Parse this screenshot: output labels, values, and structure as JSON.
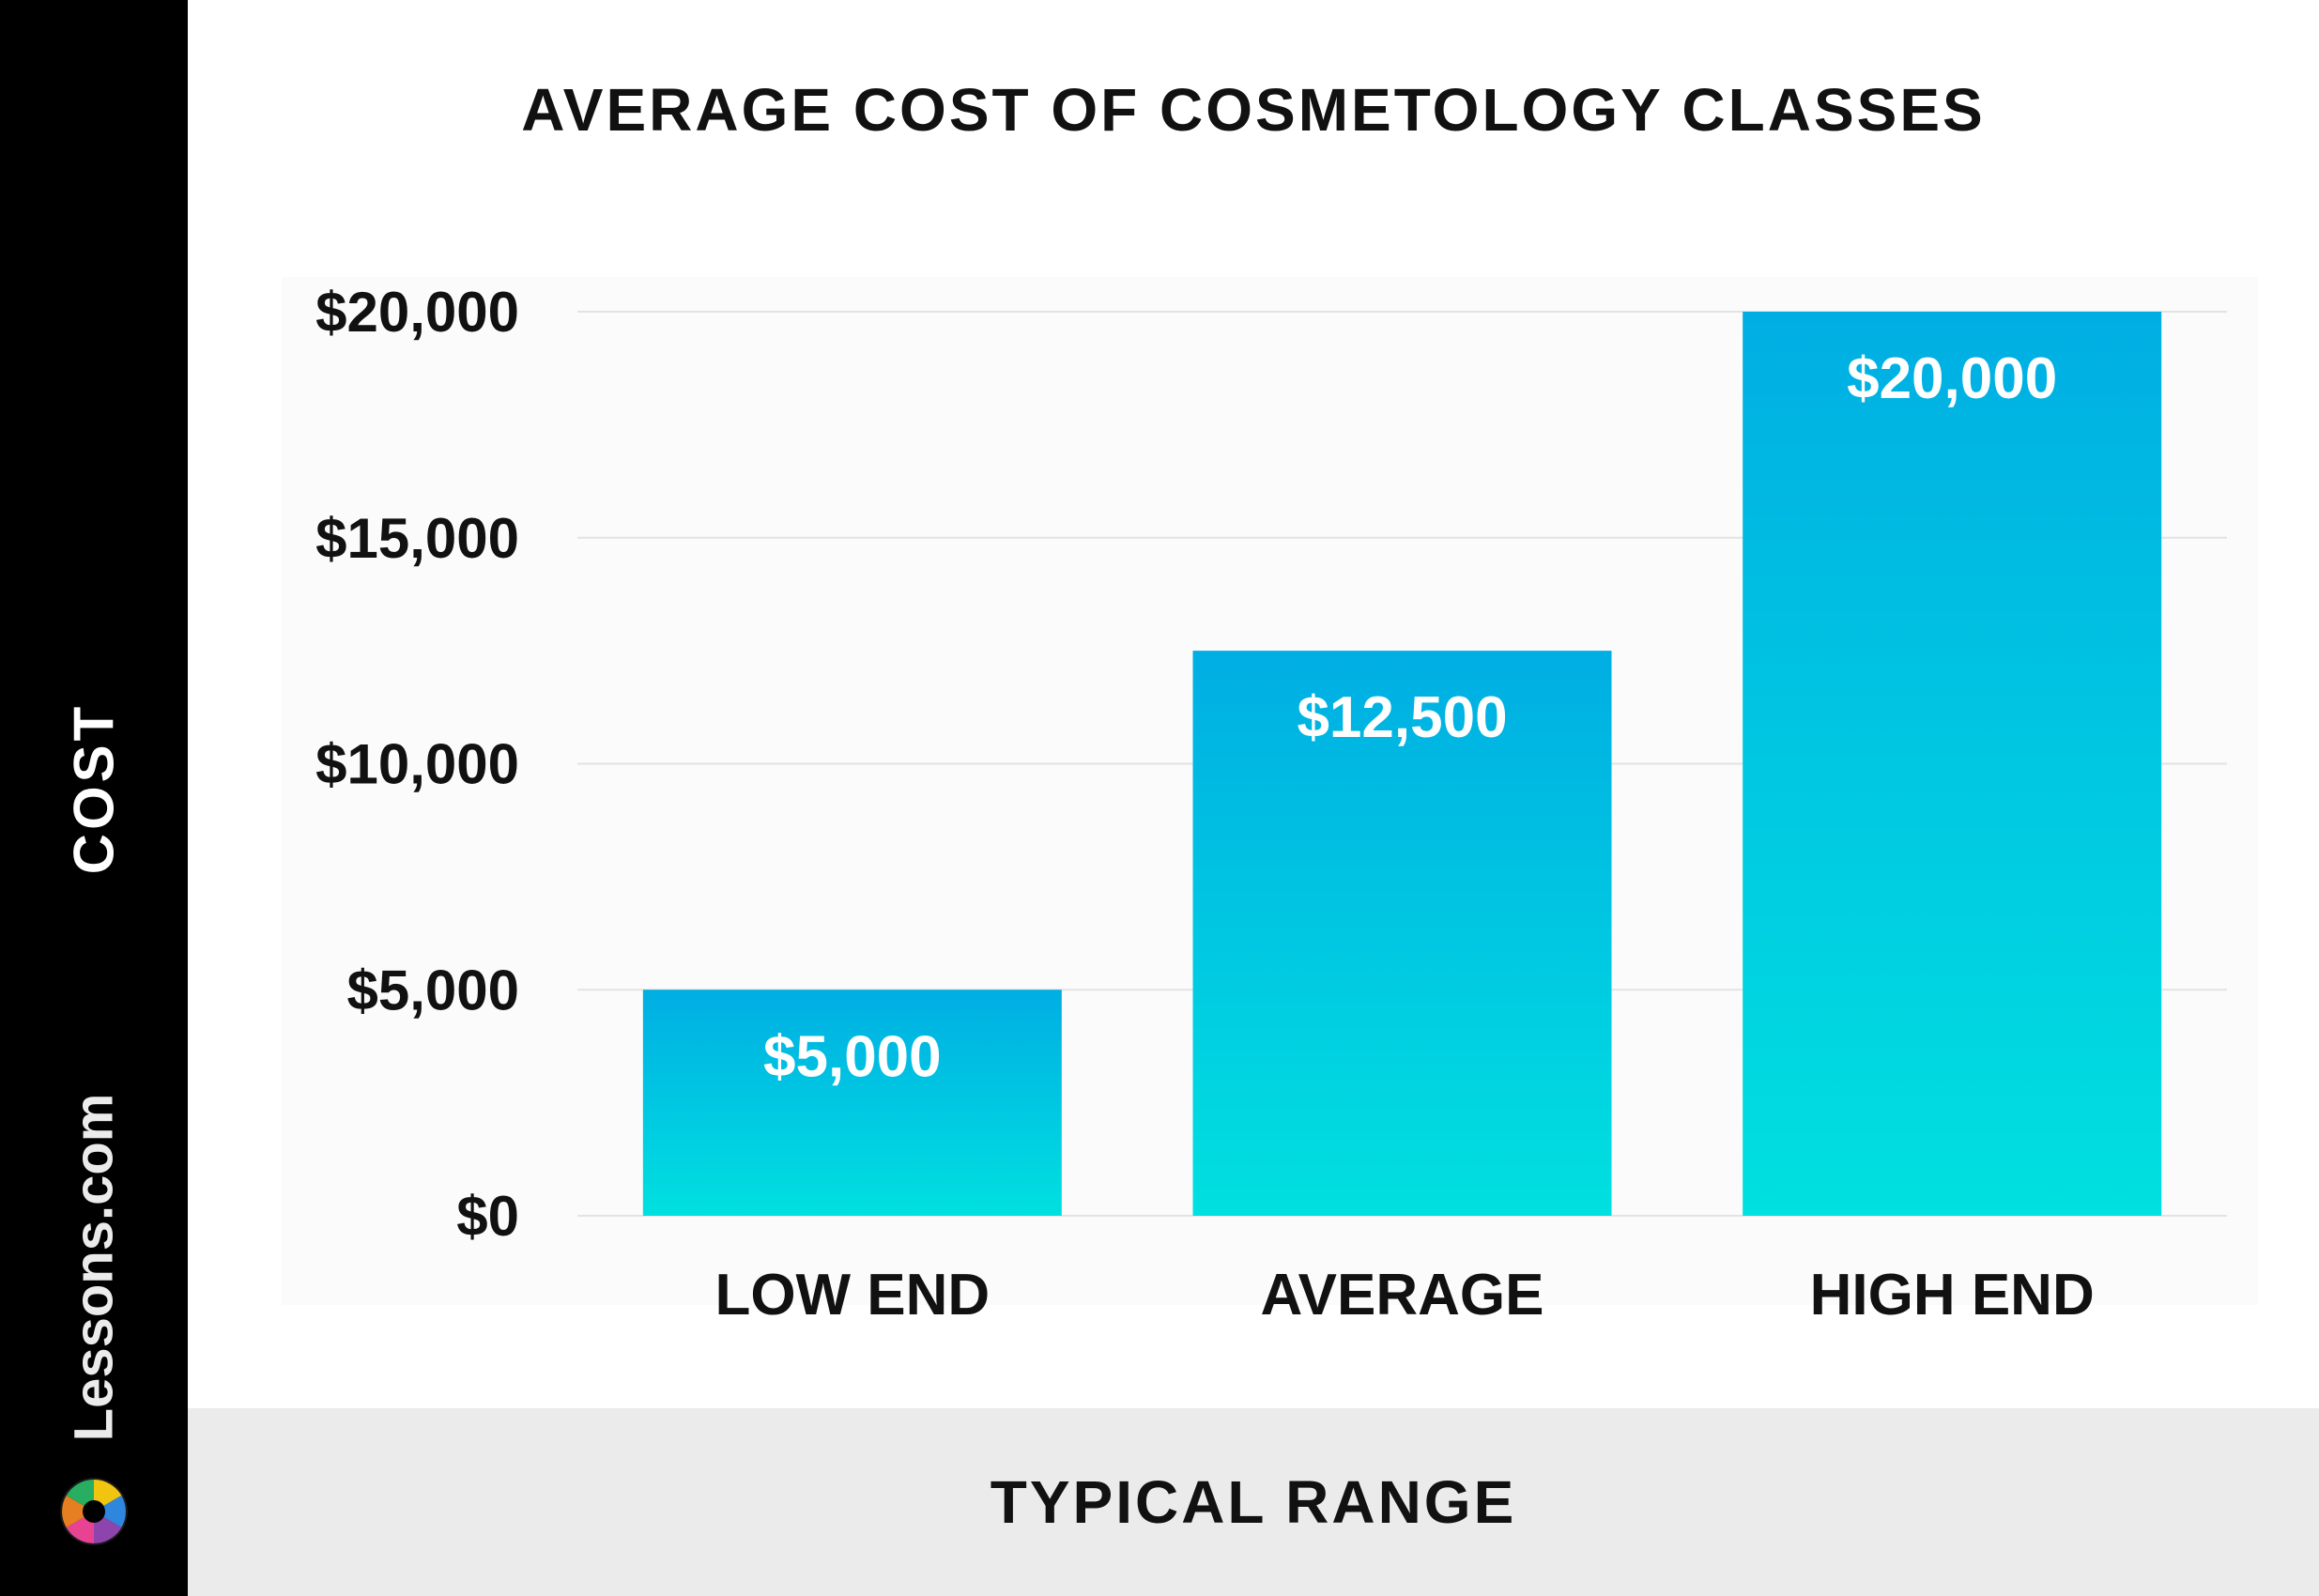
{
  "brand": {
    "name": "Lessons.com"
  },
  "colors": {
    "bar_top": "#00aee3",
    "bar_bottom": "#00e0e0",
    "grid": "#e3e3e3",
    "text": "#111111",
    "sidebar": "#000000",
    "band": "#ebebeb"
  },
  "chart_data": {
    "type": "bar",
    "title": "AVERAGE COST OF COSMETOLOGY CLASSES",
    "xlabel": "TYPICAL RANGE",
    "ylabel": "COST",
    "categories": [
      "LOW END",
      "AVERAGE",
      "HIGH END"
    ],
    "values": [
      5000,
      12500,
      20000
    ],
    "data_labels": [
      "$5,000",
      "$12,500",
      "$20,000"
    ],
    "yticks": [
      0,
      5000,
      10000,
      15000,
      20000
    ],
    "ytick_labels": [
      "$0",
      "$5,000",
      "$10,000",
      "$15,000",
      "$20,000"
    ],
    "ylim": [
      0,
      20000
    ],
    "grid": true,
    "legend": "none"
  }
}
